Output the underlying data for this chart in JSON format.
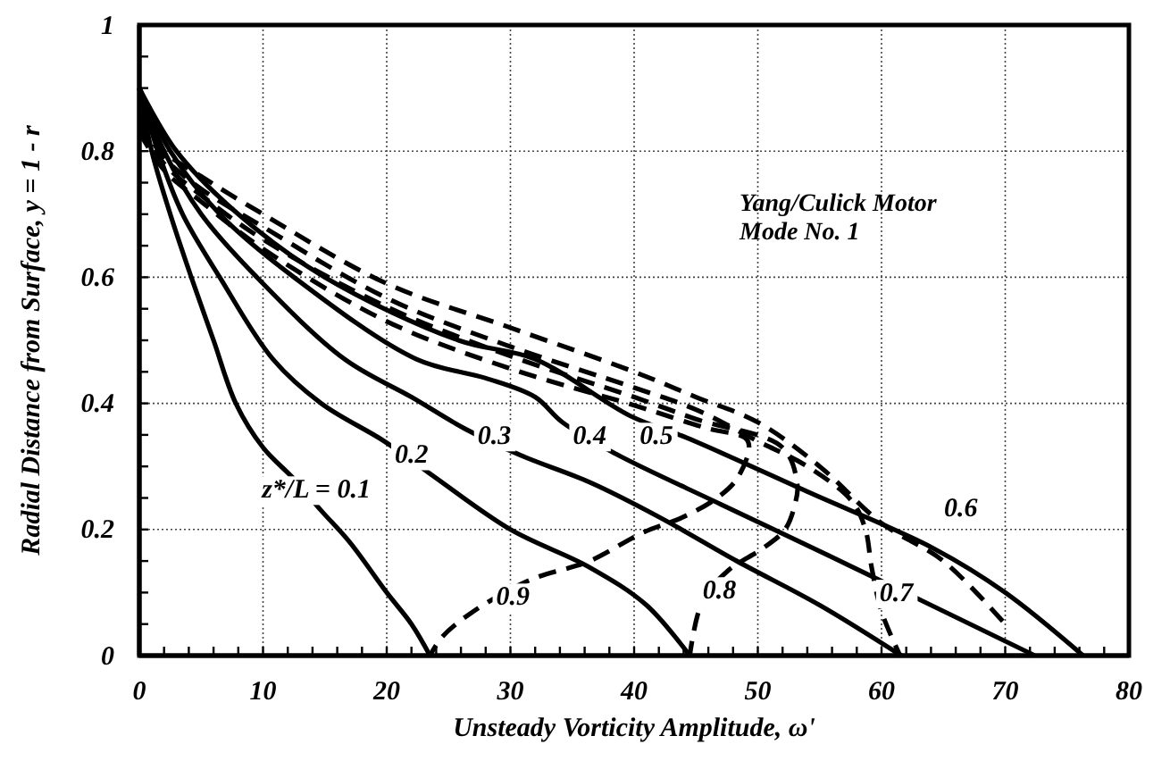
{
  "chart_data": {
    "type": "line",
    "xlabel": "Unsteady Vorticity Amplitude, ω'",
    "ylabel": "Radial Distance from Surface, y = 1 - r",
    "xlim": [
      0,
      80
    ],
    "ylim": [
      0,
      1
    ],
    "xticks": [
      0,
      {
        "value": 2,
        "label": null
      },
      {
        "value": 4,
        "label": null
      },
      {
        "value": 6,
        "label": null
      },
      {
        "value": 8,
        "label": null
      },
      10,
      {
        "value": 12,
        "label": null
      },
      {
        "value": 14,
        "label": null
      },
      {
        "value": 16,
        "label": null
      },
      {
        "value": 18,
        "label": null
      },
      20,
      {
        "value": 22,
        "label": null
      },
      {
        "value": 24,
        "label": null
      },
      {
        "value": 26,
        "label": null
      },
      {
        "value": 28,
        "label": null
      },
      30,
      {
        "value": 32,
        "label": null
      },
      {
        "value": 34,
        "label": null
      },
      {
        "value": 36,
        "label": null
      },
      {
        "value": 38,
        "label": null
      },
      40,
      {
        "value": 42,
        "label": null
      },
      {
        "value": 44,
        "label": null
      },
      {
        "value": 46,
        "label": null
      },
      {
        "value": 48,
        "label": null
      },
      50,
      {
        "value": 52,
        "label": null
      },
      {
        "value": 54,
        "label": null
      },
      {
        "value": 56,
        "label": null
      },
      {
        "value": 58,
        "label": null
      },
      60,
      {
        "value": 62,
        "label": null
      },
      {
        "value": 64,
        "label": null
      },
      {
        "value": 66,
        "label": null
      },
      {
        "value": 68,
        "label": null
      },
      70,
      {
        "value": 72,
        "label": null
      },
      {
        "value": 74,
        "label": null
      },
      {
        "value": 76,
        "label": null
      },
      {
        "value": 78,
        "label": null
      },
      80
    ],
    "yticks": [
      0,
      {
        "value": 0.05,
        "label": null
      },
      {
        "value": 0.1,
        "label": null
      },
      {
        "value": 0.15,
        "label": null
      },
      0.2,
      {
        "value": 0.25,
        "label": null
      },
      {
        "value": 0.3,
        "label": null
      },
      {
        "value": 0.35,
        "label": null
      },
      0.4,
      {
        "value": 0.45,
        "label": null
      },
      {
        "value": 0.5,
        "label": null
      },
      {
        "value": 0.55,
        "label": null
      },
      0.6,
      {
        "value": 0.65,
        "label": null
      },
      {
        "value": 0.7,
        "label": null
      },
      {
        "value": 0.75,
        "label": null
      },
      0.8,
      {
        "value": 0.85,
        "label": null
      },
      {
        "value": 0.9,
        "label": null
      },
      {
        "value": 0.95,
        "label": null
      },
      1
    ],
    "grid": true,
    "series": [
      {
        "color": "#000000",
        "line_style": "solid",
        "x": [
          0,
          1,
          2.5,
          4.2,
          6,
          7.8,
          10,
          12.5,
          14.7,
          17,
          20,
          22,
          23.5
        ],
        "values": [
          0.9,
          0.8,
          0.7,
          0.6,
          0.5,
          0.4,
          0.33,
          0.28,
          0.23,
          0.18,
          0.1,
          0.05,
          0
        ]
      },
      {
        "color": "#000000",
        "line_style": "solid",
        "x": [
          0,
          1.5,
          3.5,
          6.5,
          10.8,
          14.7,
          19.8,
          23.4,
          30,
          36.4,
          41,
          44.5
        ],
        "values": [
          0.9,
          0.8,
          0.7,
          0.6,
          0.47,
          0.4,
          0.34,
          0.29,
          0.2,
          0.14,
          0.08,
          0
        ]
      },
      {
        "color": "#000000",
        "line_style": "solid",
        "x": [
          0,
          2,
          5,
          9.5,
          16.6,
          22,
          26.3,
          30.9,
          36.4,
          42,
          48.3,
          55,
          61.6
        ],
        "values": [
          0.9,
          0.8,
          0.7,
          0.6,
          0.47,
          0.41,
          0.36,
          0.317,
          0.275,
          0.22,
          0.15,
          0.08,
          0
        ]
      },
      {
        "color": "#000000",
        "line_style": "solid",
        "x": [
          0,
          2.5,
          6.5,
          12.5,
          22.4,
          28,
          32,
          34.2,
          38.5,
          47,
          55.6,
          64,
          72.4
        ],
        "values": [
          0.9,
          0.8,
          0.7,
          0.6,
          0.47,
          0.44,
          0.41,
          0.37,
          0.32,
          0.24,
          0.16,
          0.08,
          0
        ]
      },
      {
        "color": "#000000",
        "line_style": "solid",
        "x": [
          0,
          3,
          8,
          15,
          25.8,
          32,
          39.7,
          44.3,
          54,
          64.2,
          70,
          76.3
        ],
        "values": [
          0.9,
          0.8,
          0.7,
          0.6,
          0.5,
          0.47,
          0.38,
          0.345,
          0.26,
          0.17,
          0.1,
          0
        ]
      },
      {
        "color": "#000000",
        "line_style": "dashed",
        "x": [
          0,
          2,
          5,
          10,
          20,
          30,
          40,
          45,
          50,
          55,
          60,
          65,
          70
        ],
        "values": [
          0.86,
          0.8,
          0.76,
          0.7,
          0.59,
          0.52,
          0.45,
          0.41,
          0.37,
          0.3,
          0.21,
          0.15,
          0.05
        ]
      },
      {
        "color": "#000000",
        "line_style": "dashed",
        "x": [
          0,
          2,
          5,
          10,
          20,
          30,
          40,
          45,
          50,
          54,
          57.6,
          58.7,
          59.2,
          60,
          61.5
        ],
        "values": [
          0.85,
          0.79,
          0.74,
          0.68,
          0.567,
          0.49,
          0.425,
          0.39,
          0.34,
          0.3,
          0.245,
          0.2,
          0.14,
          0.07,
          0
        ]
      },
      {
        "color": "#000000",
        "line_style": "dashed",
        "x": [
          0,
          2,
          5,
          10,
          20,
          30,
          40,
          45,
          52,
          53.2,
          53,
          52.2,
          50.4,
          47.6,
          45.5,
          44.5
        ],
        "values": [
          0.84,
          0.78,
          0.73,
          0.66,
          0.553,
          0.475,
          0.41,
          0.375,
          0.33,
          0.27,
          0.24,
          0.2,
          0.17,
          0.135,
          0.085,
          0
        ]
      },
      {
        "color": "#000000",
        "line_style": "dashed",
        "x": [
          0,
          2,
          5,
          10,
          20,
          30,
          40,
          46,
          49,
          49.3,
          48.3,
          46.7,
          44,
          40.7,
          36.4,
          31.6,
          27,
          24.5,
          23.5
        ],
        "values": [
          0.83,
          0.77,
          0.72,
          0.645,
          0.53,
          0.455,
          0.397,
          0.36,
          0.345,
          0.33,
          0.28,
          0.25,
          0.22,
          0.195,
          0.15,
          0.12,
          0.07,
          0.03,
          0
        ]
      }
    ],
    "annotations": [
      {
        "text": "z*/L = 0.1",
        "x": 14.3,
        "y": 0.26
      },
      {
        "text": "0.2",
        "x": 22,
        "y": 0.315
      },
      {
        "text": "0.3",
        "x": 28.7,
        "y": 0.345
      },
      {
        "text": "0.4",
        "x": 36.4,
        "y": 0.345
      },
      {
        "text": "0.5",
        "x": 41.8,
        "y": 0.345
      },
      {
        "text": "0.6",
        "x": 66.4,
        "y": 0.23
      },
      {
        "text": "0.7",
        "x": 61.2,
        "y": 0.096
      },
      {
        "text": "0.8",
        "x": 46.9,
        "y": 0.1
      },
      {
        "text": "0.9",
        "x": 30.2,
        "y": 0.09
      },
      "Yang/Culick Motor",
      "Mode No. 1"
    ]
  }
}
